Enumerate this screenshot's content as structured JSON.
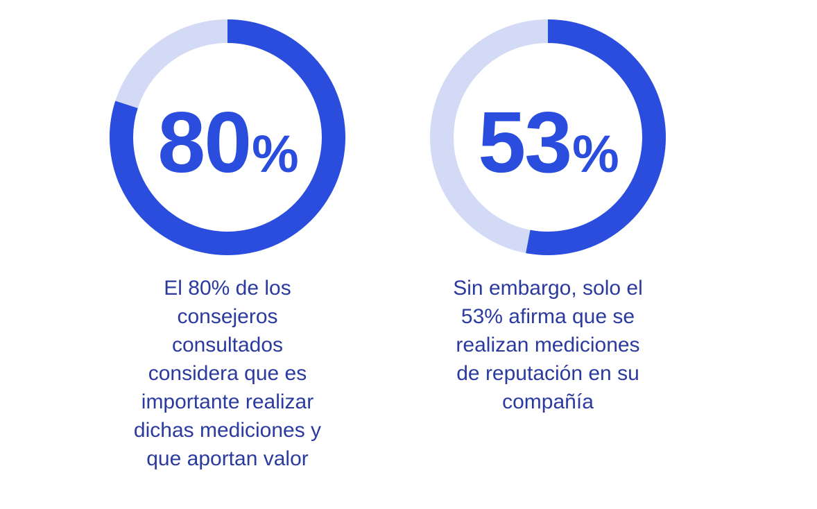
{
  "colors": {
    "accent": "#2a4ddd",
    "track": "#d3daf6",
    "text": "#2a3a9e"
  },
  "chart_data": [
    {
      "type": "pie",
      "value": 80,
      "values": [
        80,
        20
      ],
      "label": "80%",
      "caption_lines": [
        "El 80% de los",
        "consejeros",
        "consultados",
        "considera que es",
        "importante realizar",
        "dichas mediciones y",
        "que aportan valor"
      ]
    },
    {
      "type": "pie",
      "value": 53,
      "values": [
        53,
        47
      ],
      "label": "53%",
      "caption_lines": [
        "Sin embargo, solo el",
        "53% afirma que se",
        "realizan mediciones",
        "de reputación en su",
        "compañía"
      ]
    }
  ]
}
